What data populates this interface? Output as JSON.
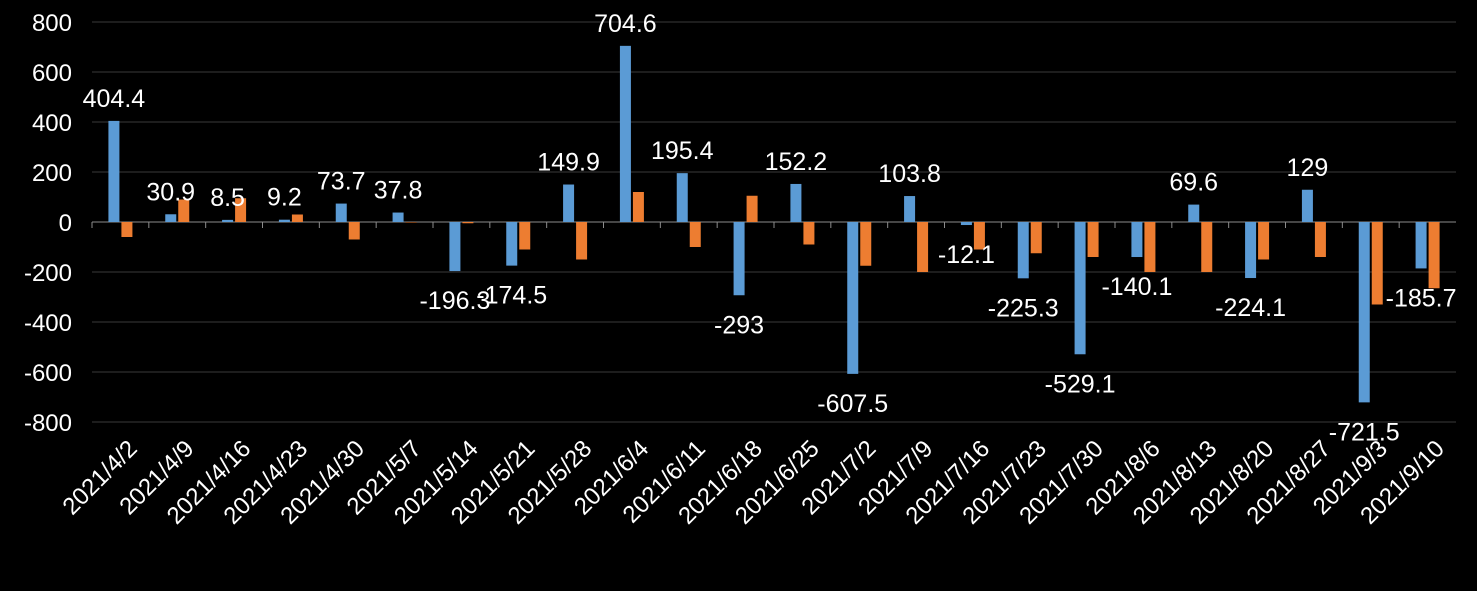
{
  "chart_data": {
    "type": "bar",
    "title": "",
    "xlabel": "",
    "ylabel": "",
    "ylim": [
      -800,
      800
    ],
    "yticks": [
      800,
      600,
      400,
      200,
      0,
      -200,
      -400,
      -600,
      -800
    ],
    "grid": true,
    "legend": "none",
    "categories": [
      "2021/4/2",
      "2021/4/9",
      "2021/4/16",
      "2021/4/23",
      "2021/4/30",
      "2021/5/7",
      "2021/5/14",
      "2021/5/21",
      "2021/5/28",
      "2021/6/4",
      "2021/6/11",
      "2021/6/18",
      "2021/6/25",
      "2021/7/2",
      "2021/7/9",
      "2021/7/16",
      "2021/7/23",
      "2021/7/30",
      "2021/8/6",
      "2021/8/13",
      "2021/8/20",
      "2021/8/27",
      "2021/9/3",
      "2021/9/10"
    ],
    "series": [
      {
        "color": "#5B9BD5",
        "values": [
          404.4,
          30.9,
          8.5,
          9.2,
          73.7,
          37.8,
          -196.3,
          -174.5,
          149.9,
          704.6,
          195.4,
          -293,
          152.2,
          -607.5,
          103.8,
          -12.1,
          -225.3,
          -529.1,
          -140.1,
          69.6,
          -224.1,
          129,
          -721.5,
          -185.7
        ],
        "labels": [
          "404.4",
          "30.9",
          "8.5",
          "9.2",
          "73.7",
          "37.8",
          "-196.3",
          "-174.5",
          "149.9",
          "704.6",
          "195.4",
          "-293",
          "152.2",
          "-607.5",
          "103.8",
          "-12.1",
          "-225.3",
          "-529.1",
          "-140.1",
          "69.6",
          "-224.1",
          "129",
          "-721.5",
          "-185.7"
        ]
      },
      {
        "color": "#ED7D31",
        "values": [
          -60,
          90,
          95,
          30,
          -70,
          0,
          -5,
          -110,
          -150,
          120,
          -100,
          105,
          -90,
          -175,
          -200,
          -110,
          -125,
          -140,
          -200,
          -200,
          -150,
          -140,
          -330,
          -265
        ]
      }
    ]
  }
}
